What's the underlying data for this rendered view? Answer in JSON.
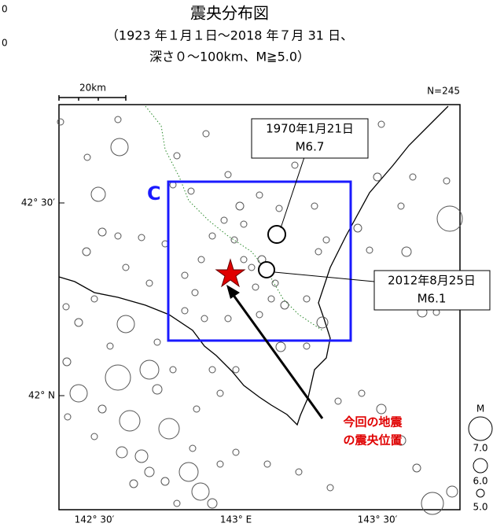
{
  "header": {
    "cropped_labels": [
      "0",
      "0"
    ],
    "title": "震央分布図",
    "subtitle_lines": [
      "（1923 年１月１日～2018 年７月 31 日、",
      "深さ０～100km、M≧5.0）"
    ]
  },
  "map": {
    "scale_label": "20km",
    "count_label": "N=245",
    "region_label": "C",
    "lat_labels": [
      "42° 30′",
      "42° N"
    ],
    "lon_labels": [
      "142° 30′",
      "143° E",
      "143° 30′"
    ]
  },
  "annotations": [
    {
      "lines": [
        "1970年1月21日",
        "M6.7"
      ]
    },
    {
      "lines": [
        "2012年8月25日",
        "M6.1"
      ]
    },
    {
      "lines": [
        "今回の地震",
        "の震央位置"
      ]
    }
  ],
  "legend": {
    "title": "M",
    "labels": [
      "7.0",
      "6.0",
      "5.0"
    ]
  }
}
